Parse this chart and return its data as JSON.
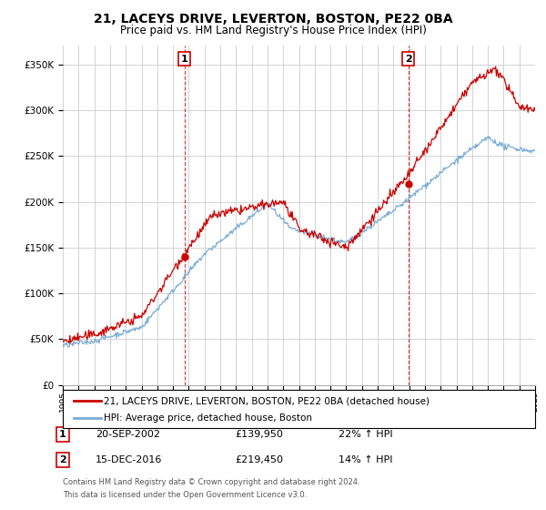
{
  "title": "21, LACEYS DRIVE, LEVERTON, BOSTON, PE22 0BA",
  "subtitle": "Price paid vs. HM Land Registry's House Price Index (HPI)",
  "legend_line1": "21, LACEYS DRIVE, LEVERTON, BOSTON, PE22 0BA (detached house)",
  "legend_line2": "HPI: Average price, detached house, Boston",
  "transaction1_date": "20-SEP-2002",
  "transaction1_price": "£139,950",
  "transaction1_hpi": "22% ↑ HPI",
  "transaction1_year": 2002.72,
  "transaction1_value": 139950,
  "transaction2_date": "15-DEC-2016",
  "transaction2_price": "£219,450",
  "transaction2_hpi": "14% ↑ HPI",
  "transaction2_year": 2016.95,
  "transaction2_value": 219450,
  "footer1": "Contains HM Land Registry data © Crown copyright and database right 2024.",
  "footer2": "This data is licensed under the Open Government Licence v3.0.",
  "ylim": [
    0,
    370000
  ],
  "xlim_start": 1995,
  "xlim_end": 2025,
  "red_color": "#cc0000",
  "blue_color": "#7aadd4",
  "background_color": "#ffffff",
  "grid_color": "#cccccc"
}
